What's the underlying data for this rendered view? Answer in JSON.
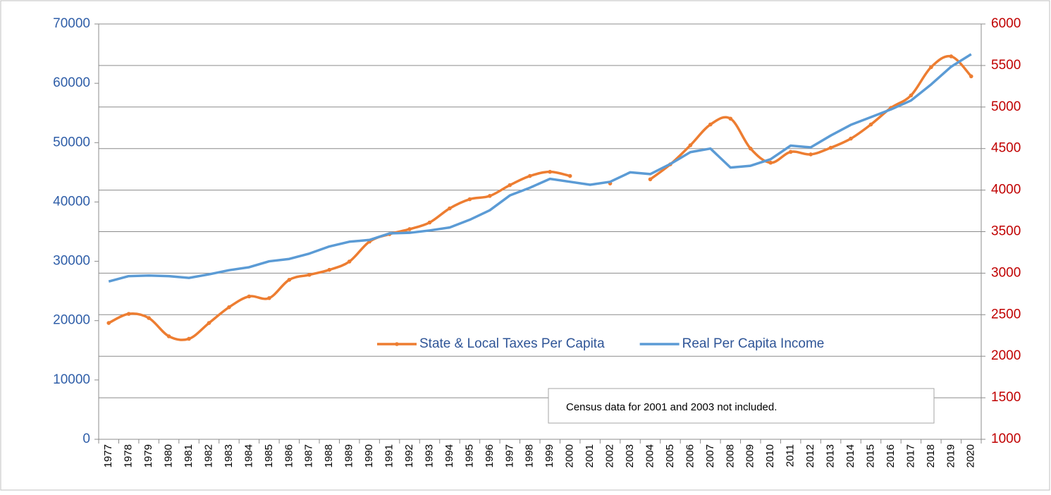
{
  "chart_data": {
    "type": "line",
    "categories": [
      "1977",
      "1978",
      "1979",
      "1980",
      "1981",
      "1982",
      "1983",
      "1984",
      "1985",
      "1986",
      "1987",
      "1988",
      "1989",
      "1990",
      "1991",
      "1992",
      "1993",
      "1994",
      "1995",
      "1996",
      "1997",
      "1998",
      "1999",
      "2000",
      "2001",
      "2002",
      "2003",
      "2004",
      "2005",
      "2006",
      "2007",
      "2008",
      "2009",
      "2010",
      "2011",
      "2012",
      "2013",
      "2014",
      "2015",
      "2016",
      "2017",
      "2018",
      "2019",
      "2020"
    ],
    "series": [
      {
        "name": "State & Local Taxes Per Capita",
        "color": "#ed7d31",
        "axis": "y2",
        "markers": true,
        "smooth": true,
        "values": [
          2400,
          2510,
          2460,
          2240,
          2210,
          2400,
          2590,
          2720,
          2700,
          2920,
          2980,
          3040,
          3140,
          3380,
          3470,
          3530,
          3610,
          3780,
          3890,
          3930,
          4060,
          4170,
          4220,
          4170,
          null,
          4080,
          null,
          4130,
          4310,
          4540,
          4790,
          4860,
          4500,
          4330,
          4460,
          4430,
          4510,
          4620,
          4790,
          4990,
          5140,
          5480,
          5610,
          5370
        ]
      },
      {
        "name": "Real Per Capita Income",
        "color": "#5b9bd5",
        "axis": "y",
        "markers": false,
        "smooth": false,
        "values": [
          26600,
          27500,
          27600,
          27500,
          27200,
          27800,
          28500,
          29000,
          30000,
          30400,
          31300,
          32500,
          33300,
          33600,
          34700,
          34800,
          35200,
          35700,
          37000,
          38600,
          41100,
          42400,
          43900,
          43400,
          42900,
          43400,
          45000,
          44700,
          46400,
          48400,
          49000,
          45800,
          46100,
          47200,
          49500,
          49200,
          51200,
          53000,
          54300,
          55600,
          57100,
          59800,
          62800,
          64900
        ]
      }
    ],
    "ylim": [
      0,
      70000
    ],
    "yticks": [
      0,
      10000,
      20000,
      30000,
      40000,
      50000,
      60000,
      70000
    ],
    "y2lim": [
      1000,
      6000
    ],
    "y2ticks": [
      1000,
      1500,
      2000,
      2500,
      3000,
      3500,
      4000,
      4500,
      5000,
      5500,
      6000
    ],
    "grid": "y2",
    "legend": "center",
    "annotation": "Census data for 2001 and 2003 not included."
  }
}
